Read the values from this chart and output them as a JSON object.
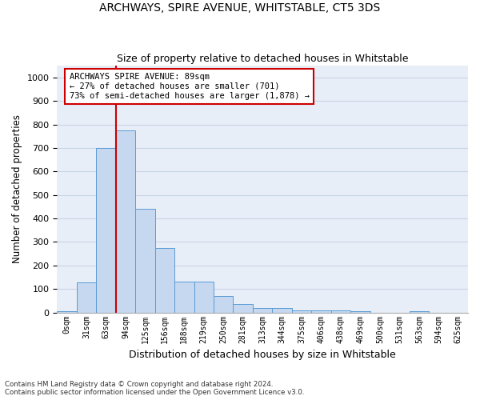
{
  "title": "ARCHWAYS, SPIRE AVENUE, WHITSTABLE, CT5 3DS",
  "subtitle": "Size of property relative to detached houses in Whitstable",
  "xlabel": "Distribution of detached houses by size in Whitstable",
  "ylabel": "Number of detached properties",
  "bar_labels": [
    "0sqm",
    "31sqm",
    "63sqm",
    "94sqm",
    "125sqm",
    "156sqm",
    "188sqm",
    "219sqm",
    "250sqm",
    "281sqm",
    "313sqm",
    "344sqm",
    "375sqm",
    "406sqm",
    "438sqm",
    "469sqm",
    "500sqm",
    "531sqm",
    "563sqm",
    "594sqm",
    "625sqm"
  ],
  "bar_values": [
    5,
    127,
    700,
    775,
    440,
    275,
    130,
    130,
    70,
    35,
    20,
    20,
    10,
    10,
    10,
    5,
    0,
    0,
    5,
    0,
    0
  ],
  "bar_color": "#c5d8f0",
  "bar_edge_color": "#5b9bd5",
  "grid_color": "#c8d4e8",
  "background_color": "#e8eef8",
  "vline_index": 3,
  "annotation_text": "ARCHWAYS SPIRE AVENUE: 89sqm\n← 27% of detached houses are smaller (701)\n73% of semi-detached houses are larger (1,878) →",
  "annotation_box_color": "#ffffff",
  "annotation_box_edge_color": "#cc0000",
  "vline_color": "#cc0000",
  "ylim": [
    0,
    1050
  ],
  "yticks": [
    0,
    100,
    200,
    300,
    400,
    500,
    600,
    700,
    800,
    900,
    1000
  ],
  "footer_line1": "Contains HM Land Registry data © Crown copyright and database right 2024.",
  "footer_line2": "Contains public sector information licensed under the Open Government Licence v3.0."
}
